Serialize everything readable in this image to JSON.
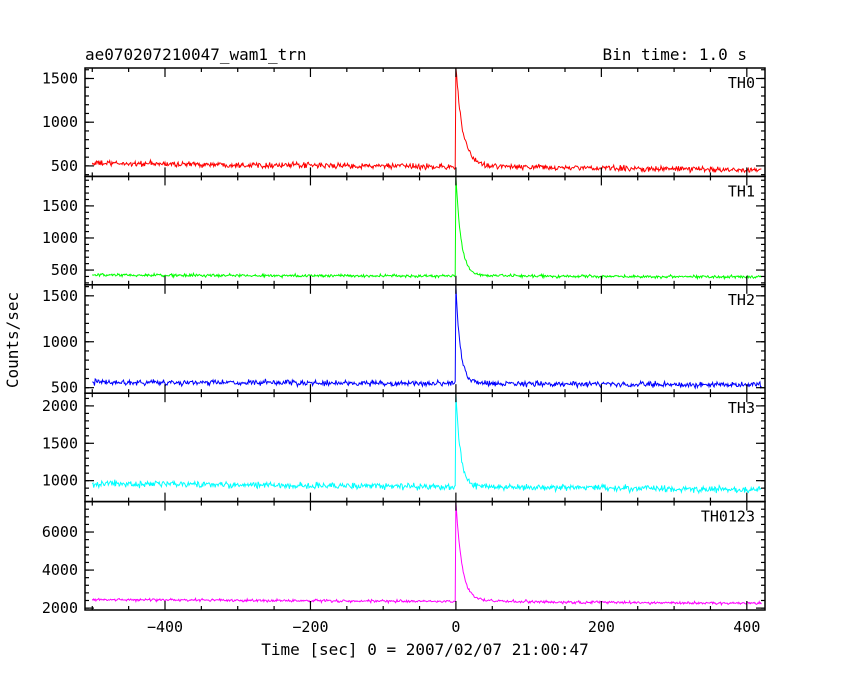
{
  "chart_data": {
    "type": "line",
    "title": "ae070207210047_wam1_trn",
    "subtitle": "Bin time: 1.0 s",
    "xlabel": "Time [sec] 0 = 2007/02/07 21:00:47",
    "ylabel": "Counts/sec",
    "xlim": [
      -510,
      425
    ],
    "x_ticks": [
      -400,
      -200,
      0,
      200,
      400
    ],
    "x_tick_labels": [
      "−400",
      "−200",
      "0",
      "200",
      "400"
    ],
    "x_range": [
      -500,
      420
    ],
    "bin_time": 1.0,
    "grid": false,
    "series": [
      {
        "name": "TH0",
        "color": "#ff0000",
        "ylim": [
          380,
          1620
        ],
        "y_ticks": [
          500,
          1000,
          1500
        ],
        "baseline_start": 530,
        "baseline_end": 455,
        "noise": 30,
        "peak": 1620,
        "post_burst_level": 480,
        "decay_seconds": 9
      },
      {
        "name": "TH1",
        "color": "#00ff00",
        "ylim": [
          270,
          1960
        ],
        "y_ticks": [
          500,
          1000,
          1500
        ],
        "baseline_start": 420,
        "baseline_end": 395,
        "noise": 22,
        "peak": 1960,
        "post_burst_level": 410,
        "decay_seconds": 7
      },
      {
        "name": "TH2",
        "color": "#0000ff",
        "ylim": [
          440,
          1620
        ],
        "y_ticks": [
          500,
          1000,
          1500
        ],
        "baseline_start": 560,
        "baseline_end": 530,
        "noise": 28,
        "peak": 1600,
        "post_burst_level": 540,
        "decay_seconds": 6
      },
      {
        "name": "TH3",
        "color": "#00ffff",
        "ylim": [
          720,
          2170
        ],
        "y_ticks": [
          1000,
          1500,
          2000
        ],
        "baseline_start": 960,
        "baseline_end": 880,
        "noise": 40,
        "peak": 2150,
        "post_burst_level": 900,
        "decay_seconds": 6
      },
      {
        "name": "TH0123",
        "color": "#ff00ff",
        "ylim": [
          1900,
          7600
        ],
        "y_ticks": [
          2000,
          4000,
          6000
        ],
        "baseline_start": 2450,
        "baseline_end": 2250,
        "noise": 70,
        "peak": 7600,
        "post_burst_level": 2350,
        "decay_seconds": 8
      }
    ]
  }
}
